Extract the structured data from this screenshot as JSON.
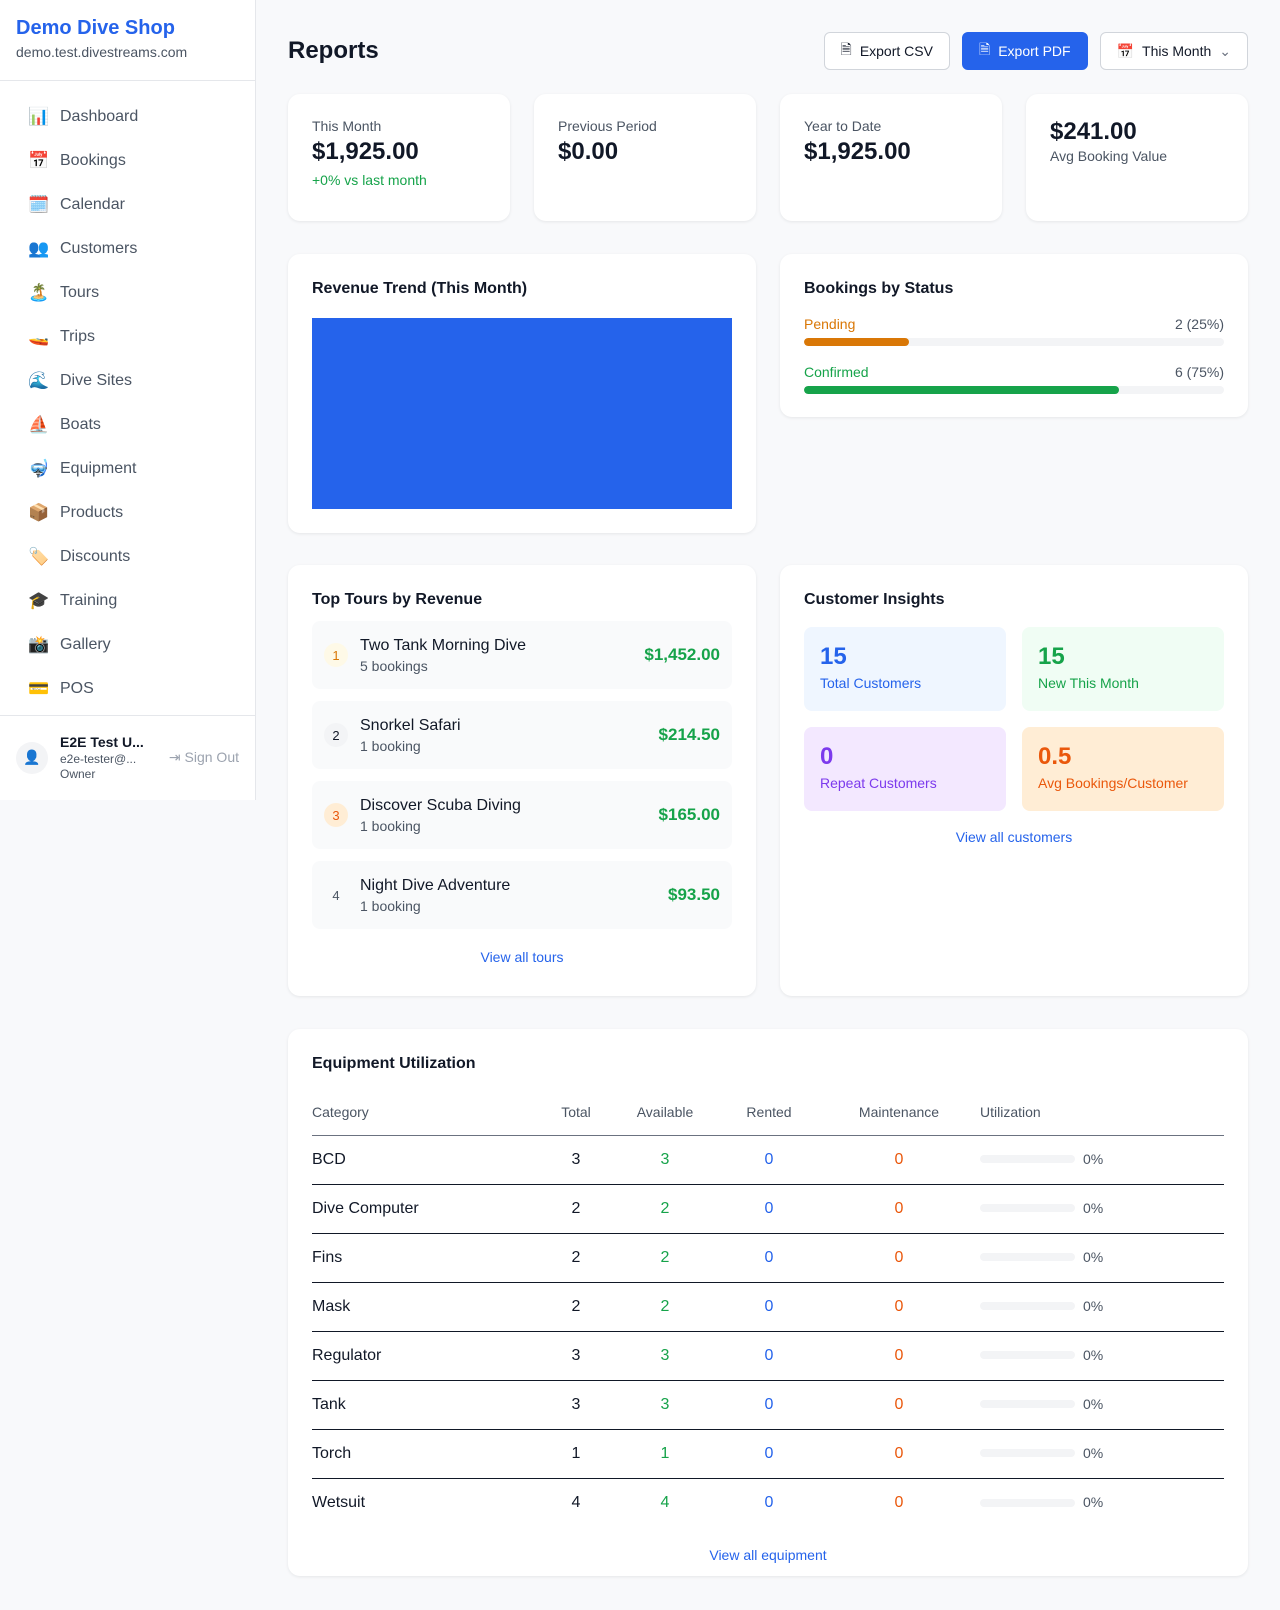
{
  "sidebar": {
    "brand": "Demo Dive Shop",
    "domain": "demo.test.divestreams.com",
    "items": [
      {
        "icon": "📊",
        "label": "Dashboard"
      },
      {
        "icon": "📅",
        "label": "Bookings"
      },
      {
        "icon": "🗓️",
        "label": "Calendar"
      },
      {
        "icon": "👥",
        "label": "Customers"
      },
      {
        "icon": "🏝️",
        "label": "Tours"
      },
      {
        "icon": "🚤",
        "label": "Trips"
      },
      {
        "icon": "🌊",
        "label": "Dive Sites"
      },
      {
        "icon": "⛵",
        "label": "Boats"
      },
      {
        "icon": "🤿",
        "label": "Equipment"
      },
      {
        "icon": "📦",
        "label": "Products"
      },
      {
        "icon": "🏷️",
        "label": "Discounts"
      },
      {
        "icon": "🎓",
        "label": "Training"
      },
      {
        "icon": "📸",
        "label": "Gallery"
      },
      {
        "icon": "💳",
        "label": "POS"
      }
    ],
    "user": {
      "name": "E2E Test U...",
      "email": "e2e-tester@...",
      "role": "Owner",
      "sign_out": "Sign Out"
    }
  },
  "header": {
    "title": "Reports",
    "export_csv": "Export CSV",
    "export_pdf": "Export PDF",
    "period": "This Month"
  },
  "stats": [
    {
      "label": "This Month",
      "value": "$1,925.00",
      "change": "+0% vs last month"
    },
    {
      "label": "Previous Period",
      "value": "$0.00"
    },
    {
      "label": "Year to Date",
      "value": "$1,925.00"
    },
    {
      "label": "Avg Booking Value",
      "value": "$241.00"
    }
  ],
  "revenue_trend": {
    "title": "Revenue Trend (This Month)",
    "color": "#2563eb"
  },
  "bookings_status": {
    "title": "Bookings by Status",
    "rows": [
      {
        "label": "Pending",
        "count": "2 (25%)",
        "percent": 25,
        "color": "#d97706"
      },
      {
        "label": "Confirmed",
        "count": "6 (75%)",
        "percent": 75,
        "color": "#16a34a"
      }
    ]
  },
  "top_tours": {
    "title": "Top Tours by Revenue",
    "items": [
      {
        "rank": "1",
        "name": "Two Tank Morning Dive",
        "bookings": "5 bookings",
        "revenue": "$1,452.00"
      },
      {
        "rank": "2",
        "name": "Snorkel Safari",
        "bookings": "1 booking",
        "revenue": "$214.50"
      },
      {
        "rank": "3",
        "name": "Discover Scuba Diving",
        "bookings": "1 booking",
        "revenue": "$165.00"
      },
      {
        "rank": "4",
        "name": "Night Dive Adventure",
        "bookings": "1 booking",
        "revenue": "$93.50"
      }
    ],
    "link": "View all tours"
  },
  "customer_insights": {
    "title": "Customer Insights",
    "items": [
      {
        "value": "15",
        "label": "Total Customers"
      },
      {
        "value": "15",
        "label": "New This Month"
      },
      {
        "value": "0",
        "label": "Repeat Customers"
      },
      {
        "value": "0.5",
        "label": "Avg Bookings/Customer"
      }
    ],
    "link": "View all customers"
  },
  "equipment": {
    "title": "Equipment Utilization",
    "columns": [
      "Category",
      "Total",
      "Available",
      "Rented",
      "Maintenance",
      "Utilization"
    ],
    "rows": [
      [
        "BCD",
        "3",
        "3",
        "0",
        "0",
        "0%"
      ],
      [
        "Dive Computer",
        "2",
        "2",
        "0",
        "0",
        "0%"
      ],
      [
        "Fins",
        "2",
        "2",
        "0",
        "0",
        "0%"
      ],
      [
        "Mask",
        "2",
        "2",
        "0",
        "0",
        "0%"
      ],
      [
        "Regulator",
        "3",
        "3",
        "0",
        "0",
        "0%"
      ],
      [
        "Tank",
        "3",
        "3",
        "0",
        "0",
        "0%"
      ],
      [
        "Torch",
        "1",
        "1",
        "0",
        "0",
        "0%"
      ],
      [
        "Wetsuit",
        "4",
        "4",
        "0",
        "0",
        "0%"
      ]
    ],
    "link": "View all equipment"
  }
}
